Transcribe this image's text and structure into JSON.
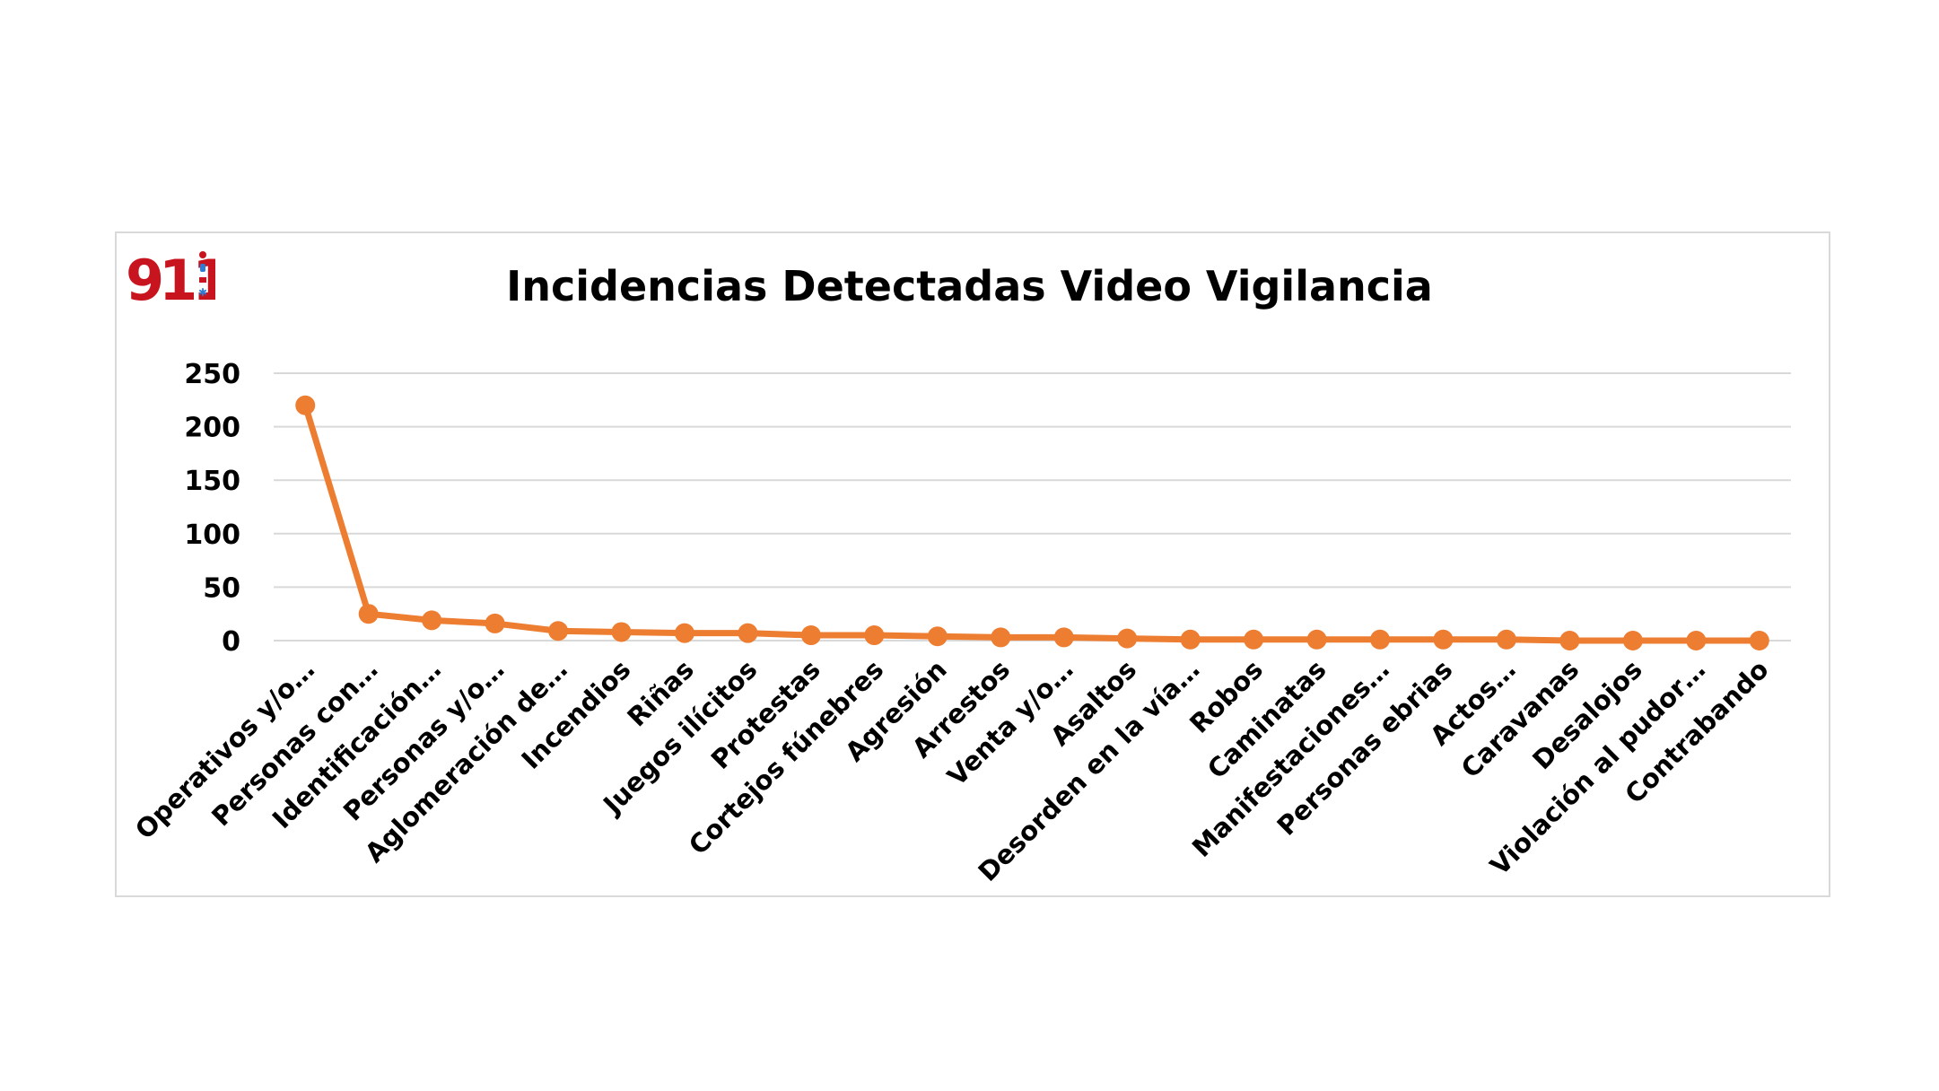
{
  "chart_data": {
    "type": "line",
    "title": "Incidencias Detectadas Video Vigilancia",
    "xlabel": "",
    "ylabel": "",
    "ylim": [
      0,
      250
    ],
    "yticks": [
      "0",
      "50",
      "100",
      "150",
      "200",
      "250"
    ],
    "grid": true,
    "legend": "none",
    "line_color": "#ED7D31",
    "grid_color": "#d9d9d9",
    "categories": [
      "Operativos y/o…",
      "Personas con…",
      "Identificación…",
      "Personas y/o…",
      "Aglomeración de…",
      "Incendios",
      "Riñas",
      "Juegos ilícitos",
      "Protestas",
      "Cortejos fúnebres",
      "Agresión",
      "Arrestos",
      "Venta y/o…",
      "Asaltos",
      "Desorden en la vía…",
      "Robos",
      "Caminatas",
      "Manifestaciones…",
      "Personas ebrias",
      "Actos…",
      "Caravanas",
      "Desalojos",
      "Violación al pudor…",
      "Contrabando"
    ],
    "values": [
      220,
      25,
      19,
      16,
      9,
      8,
      7,
      7,
      5,
      5,
      4,
      3,
      3,
      2,
      1,
      1,
      1,
      1,
      1,
      1,
      0,
      0,
      0,
      0
    ]
  },
  "logo": {
    "text": "911",
    "color": "#c8141e"
  }
}
